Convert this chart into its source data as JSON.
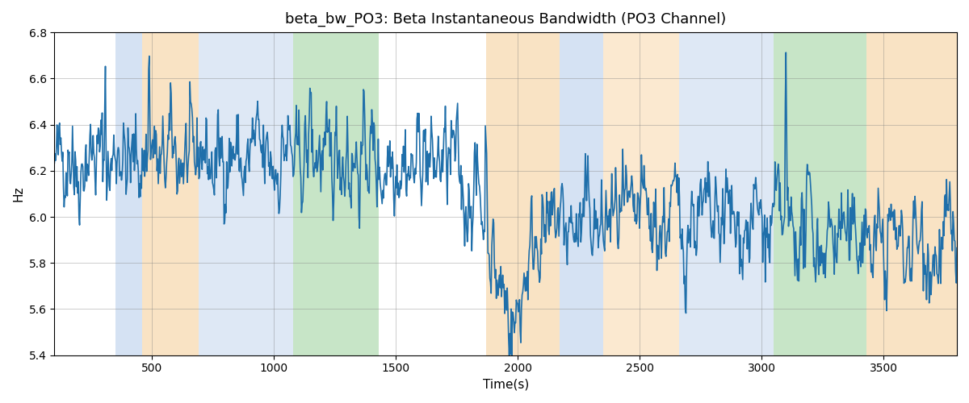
{
  "title": "beta_bw_PO3: Beta Instantaneous Bandwidth (PO3 Channel)",
  "xlabel": "Time(s)",
  "ylabel": "Hz",
  "xlim": [
    100,
    3800
  ],
  "ylim": [
    5.4,
    6.8
  ],
  "line_color": "#1f6faa",
  "line_width": 1.2,
  "bg_color": "white",
  "bands": [
    {
      "xmin": 350,
      "xmax": 460,
      "color": "#adc6e8",
      "alpha": 0.5
    },
    {
      "xmin": 460,
      "xmax": 690,
      "color": "#f5c98a",
      "alpha": 0.5
    },
    {
      "xmin": 690,
      "xmax": 1080,
      "color": "#adc6e8",
      "alpha": 0.4
    },
    {
      "xmin": 1080,
      "xmax": 1430,
      "color": "#90cc90",
      "alpha": 0.5
    },
    {
      "xmin": 1870,
      "xmax": 2170,
      "color": "#f5c98a",
      "alpha": 0.5
    },
    {
      "xmin": 2170,
      "xmax": 2350,
      "color": "#adc6e8",
      "alpha": 0.5
    },
    {
      "xmin": 2350,
      "xmax": 2660,
      "color": "#f5c98a",
      "alpha": 0.4
    },
    {
      "xmin": 2660,
      "xmax": 3050,
      "color": "#adc6e8",
      "alpha": 0.4
    },
    {
      "xmin": 3050,
      "xmax": 3430,
      "color": "#90cc90",
      "alpha": 0.5
    },
    {
      "xmin": 3430,
      "xmax": 3800,
      "color": "#f5c98a",
      "alpha": 0.5
    }
  ],
  "xticks": [
    500,
    1000,
    1500,
    2000,
    2500,
    3000,
    3500
  ],
  "yticks": [
    5.4,
    5.6,
    5.8,
    6.0,
    6.2,
    6.4,
    6.6,
    6.8
  ],
  "seed": 42,
  "n_points": 1400
}
